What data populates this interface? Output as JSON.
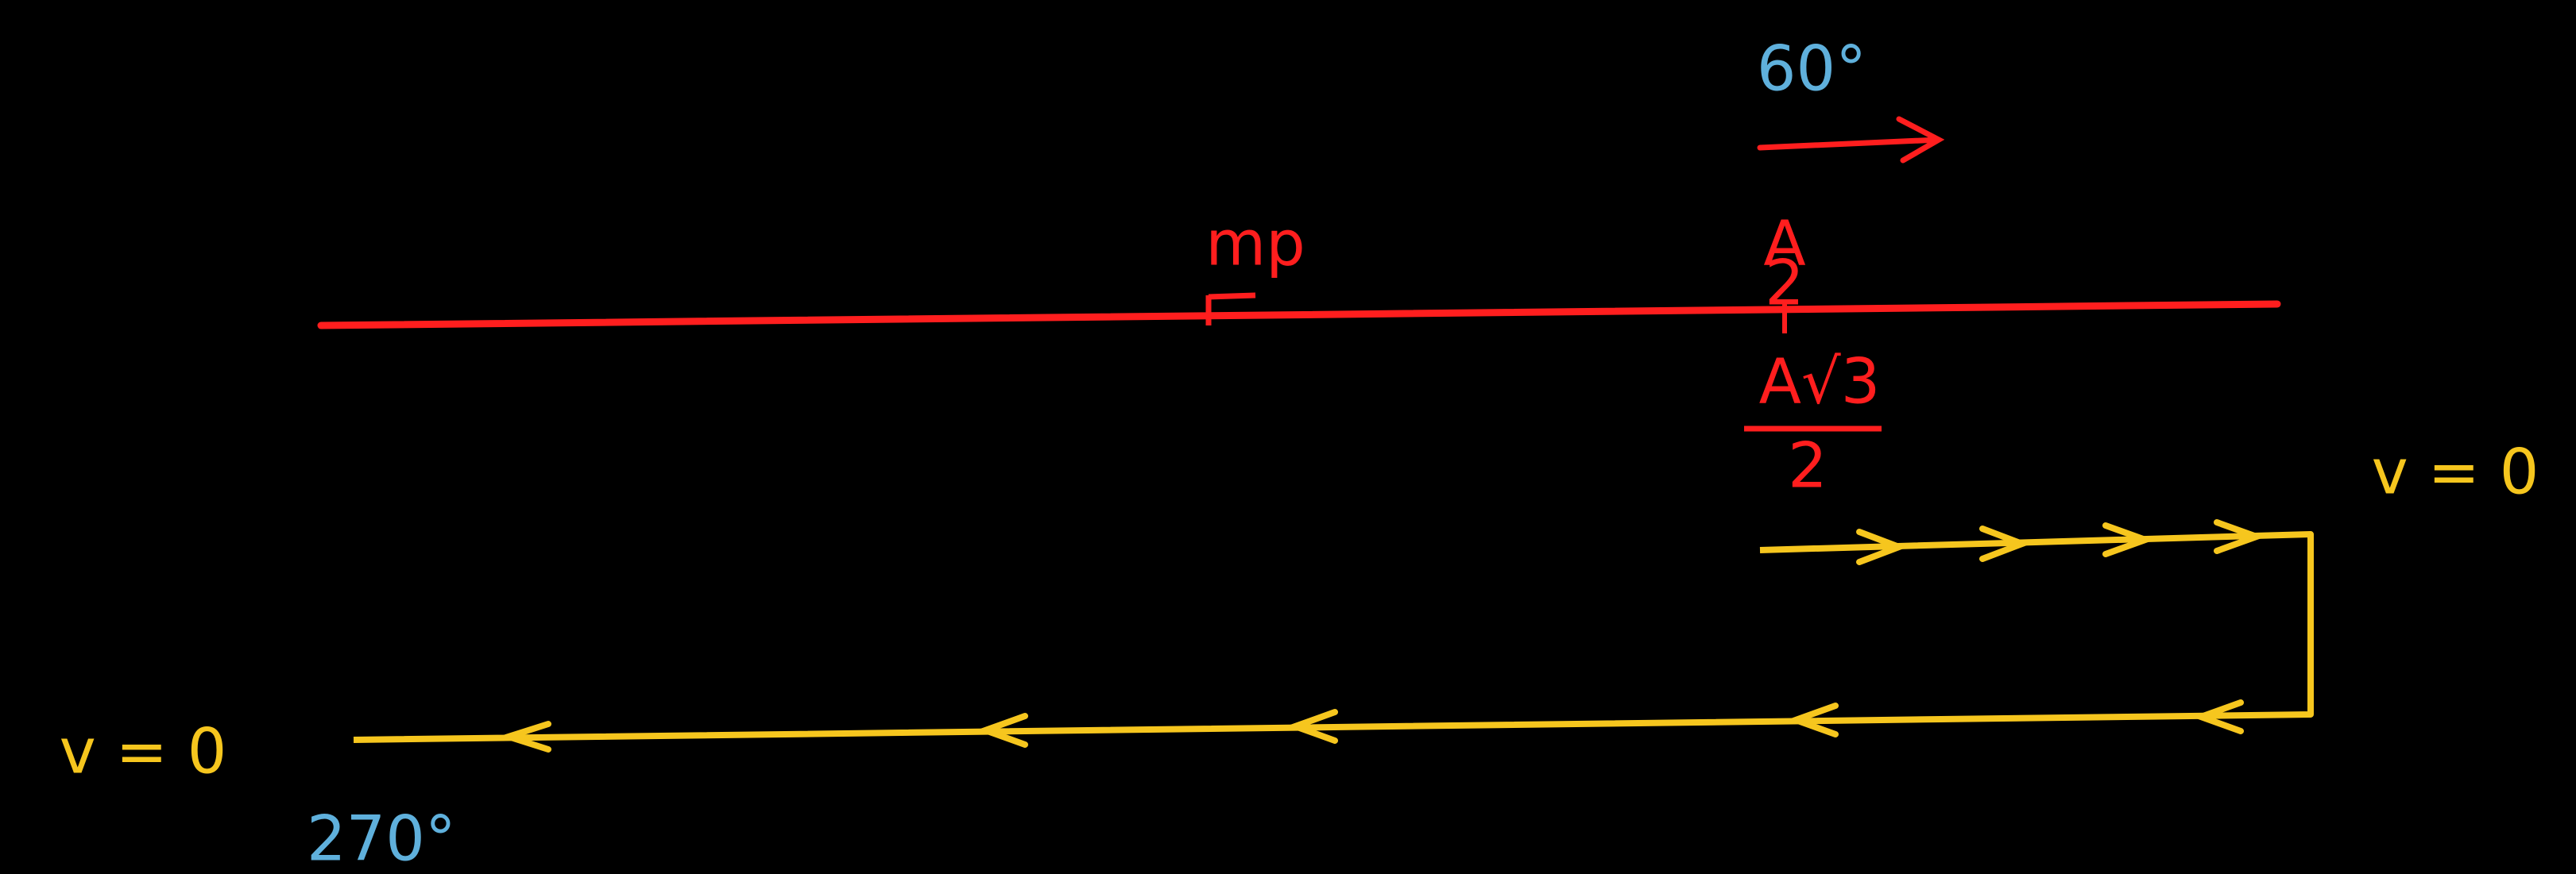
{
  "labels": {
    "angle_top": "60°",
    "mean_position": "mp",
    "amplitude_half": {
      "numerator": "A",
      "denominator": "2"
    },
    "amplitude_root3": {
      "numerator": "A√3",
      "denominator": "2"
    },
    "velocity_right": "v = 0",
    "velocity_left": "v = 0",
    "angle_bottom": "270°"
  }
}
